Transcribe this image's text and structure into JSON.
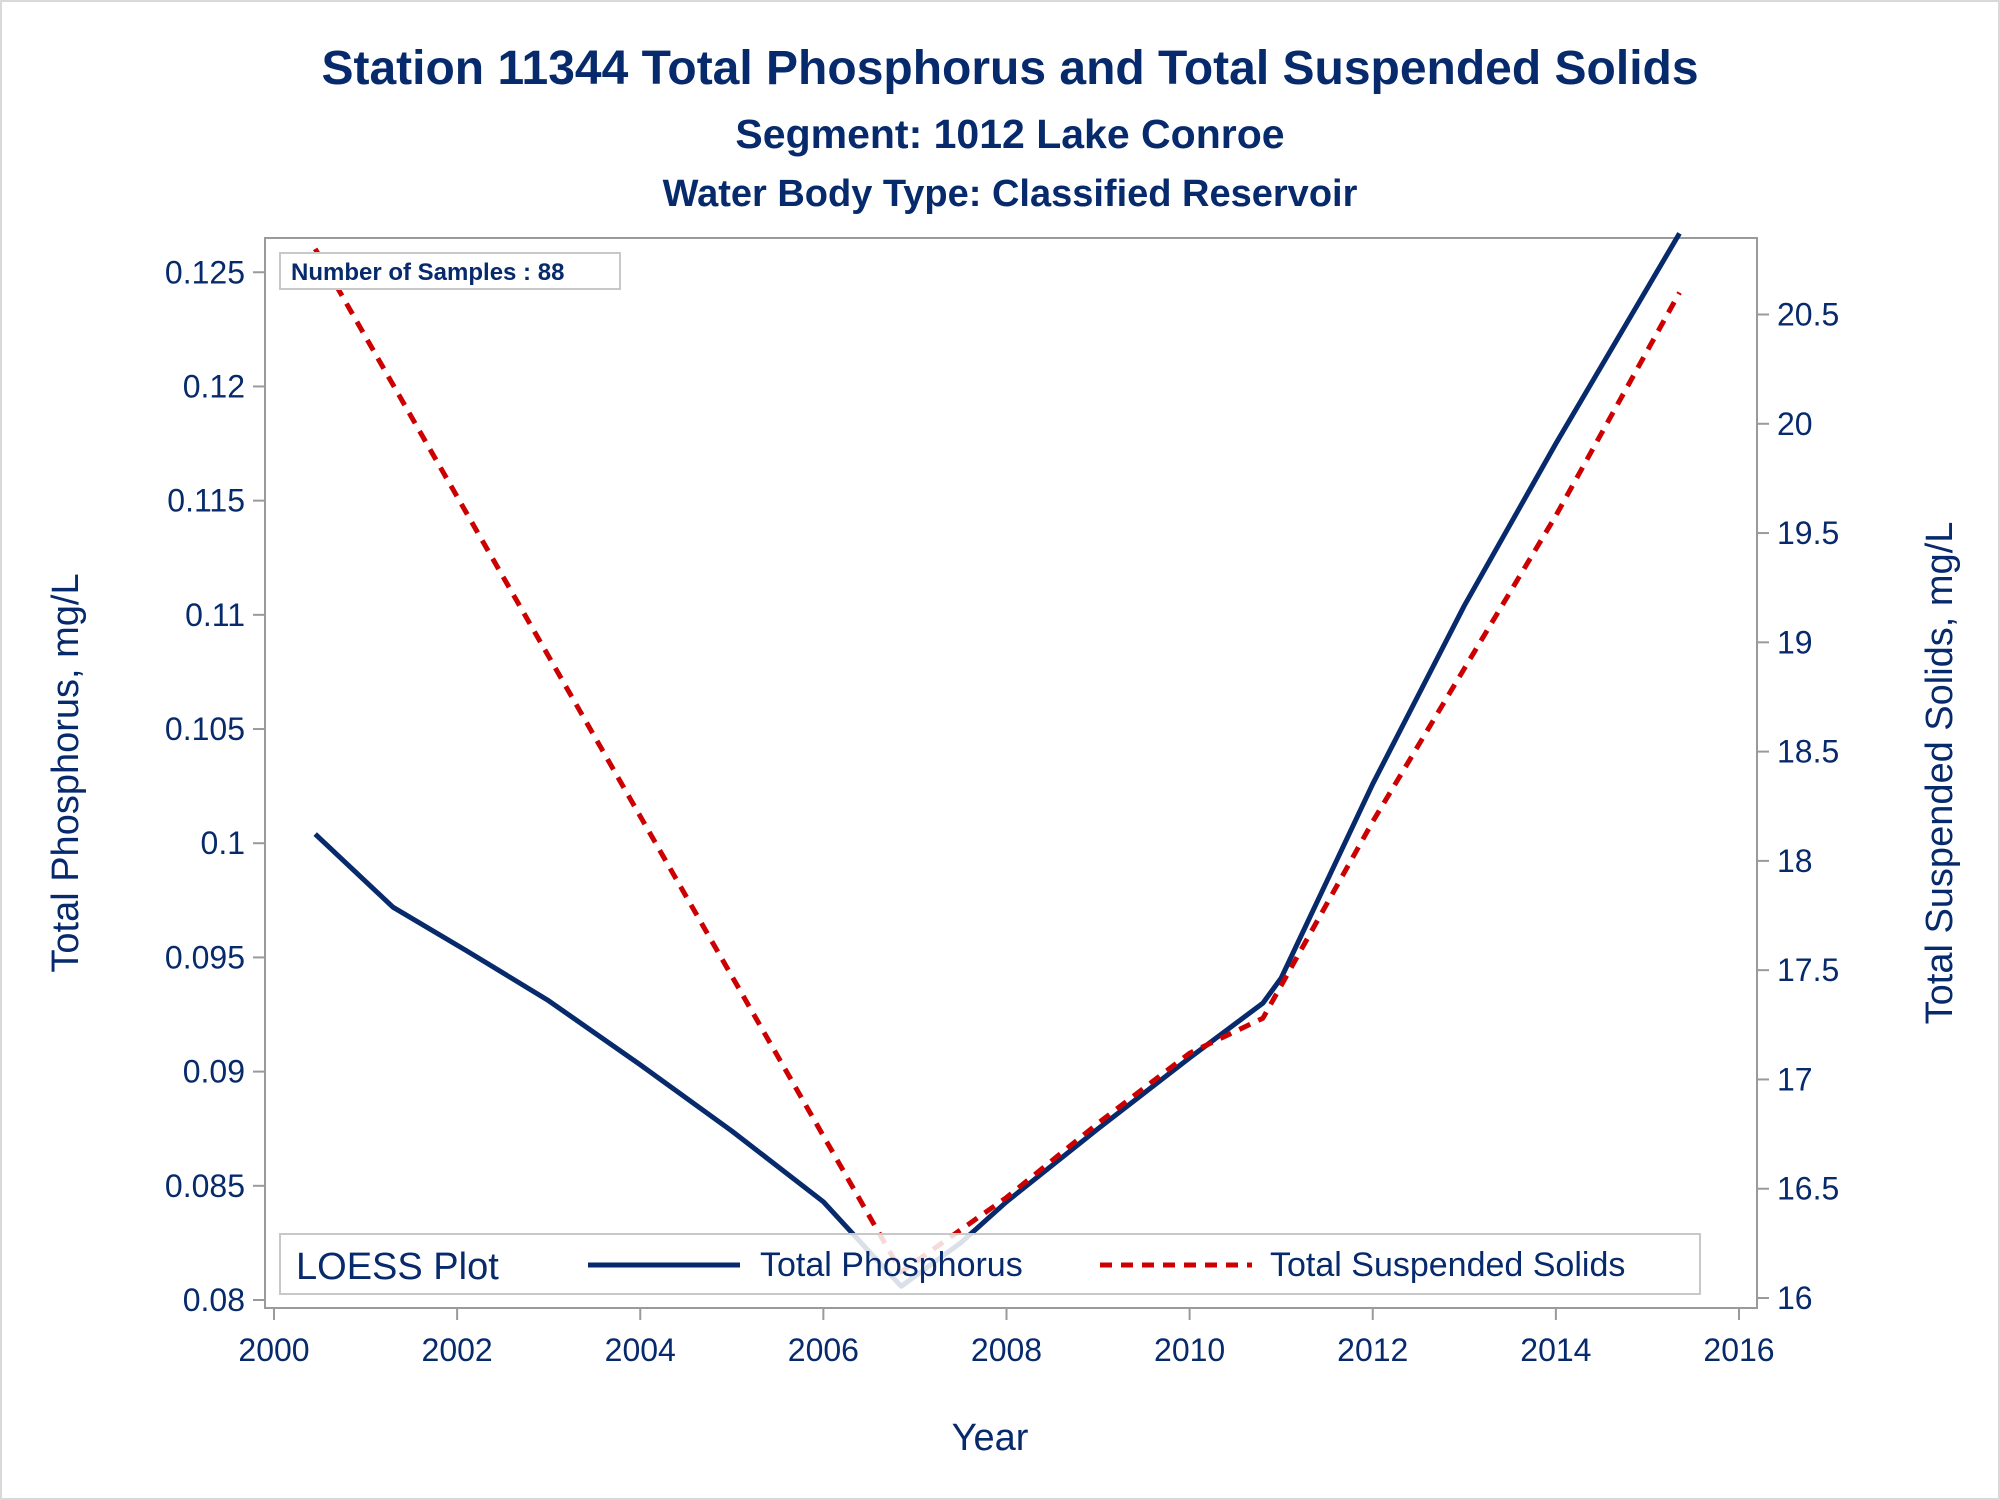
{
  "chart_data": {
    "type": "line",
    "title": "Station 11344  Total Phosphorus and Total Suspended Solids",
    "subtitle": "Segment: 1012  Lake Conroe",
    "subtitle2": "Water Body Type: Classified Reservoir",
    "xlabel": "Year",
    "ylabel_left": "Total Phosphorus, mg/L",
    "ylabel_right": "Total Suspended Solids, mg/L",
    "xlim": [
      2000,
      2016
    ],
    "ylim_left": [
      0.08,
      0.1265
    ],
    "ylim_right": [
      16.0,
      20.85
    ],
    "x_ticks": [
      "2000",
      "2002",
      "2004",
      "2006",
      "2008",
      "2010",
      "2012",
      "2014",
      "2016"
    ],
    "y_left_ticks": [
      "0.08",
      "0.085",
      "0.09",
      "0.095",
      "0.1",
      "0.105",
      "0.11",
      "0.115",
      "0.12",
      "0.125"
    ],
    "y_right_ticks": [
      "16",
      "16.5",
      "17",
      "17.5",
      "18",
      "18.5",
      "19",
      "19.5",
      "20",
      "20.5"
    ],
    "annotation": "Number of Samples : 88",
    "legend": {
      "title": "LOESS Plot",
      "placement": "bottom-inside",
      "entries": [
        "Total Phosphorus",
        "Total Suspended Solids"
      ]
    },
    "grid": false,
    "series": [
      {
        "name": "Total Phosphorus",
        "axis": "left",
        "color": "#072a6c",
        "style": "solid",
        "x": [
          2000.45,
          2001.3,
          2002.1,
          2003.0,
          2004.0,
          2005.0,
          2006.0,
          2006.85,
          2007.5,
          2008.0,
          2009.0,
          2010.0,
          2010.8,
          2011.0,
          2012.0,
          2013.0,
          2014.0,
          2015.35
        ],
        "y": [
          0.1004,
          0.0972,
          0.0953,
          0.0931,
          0.0903,
          0.0874,
          0.0843,
          0.0806,
          0.0825,
          0.0843,
          0.0875,
          0.0906,
          0.093,
          0.0941,
          0.1026,
          0.1104,
          0.1175,
          0.1267
        ]
      },
      {
        "name": "Total Suspended Solids",
        "axis": "right",
        "color": "#cc0000",
        "style": "dashed",
        "x": [
          2000.45,
          2006.85,
          2008.0,
          2009.0,
          2010.0,
          2010.8,
          2012.0,
          2013.0,
          2014.0,
          2015.35
        ],
        "y": [
          20.8,
          16.12,
          16.46,
          16.8,
          17.12,
          17.28,
          18.18,
          18.88,
          19.58,
          20.6
        ]
      }
    ]
  }
}
